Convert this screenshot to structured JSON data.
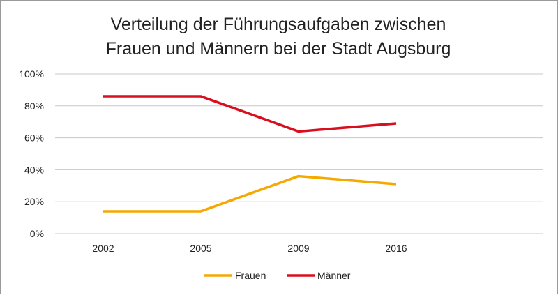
{
  "chart_data": {
    "type": "line",
    "title_lines": [
      "Verteilung der Führungsaufgaben zwischen",
      "Frauen und Männern bei der Stadt Augsburg"
    ],
    "categories": [
      "2002",
      "2005",
      "2009",
      "2016"
    ],
    "ylim": [
      0,
      100
    ],
    "yticks": [
      "0%",
      "20%",
      "40%",
      "60%",
      "80%",
      "100%"
    ],
    "ytick_values": [
      0,
      20,
      40,
      60,
      80,
      100
    ],
    "grid": true,
    "legend_position": "bottom",
    "series": [
      {
        "name": "Frauen",
        "color": "#F5A800",
        "values": [
          14,
          14,
          36,
          31
        ]
      },
      {
        "name": "Männer",
        "color": "#D80F1E",
        "values": [
          86,
          86,
          64,
          69
        ]
      }
    ]
  }
}
